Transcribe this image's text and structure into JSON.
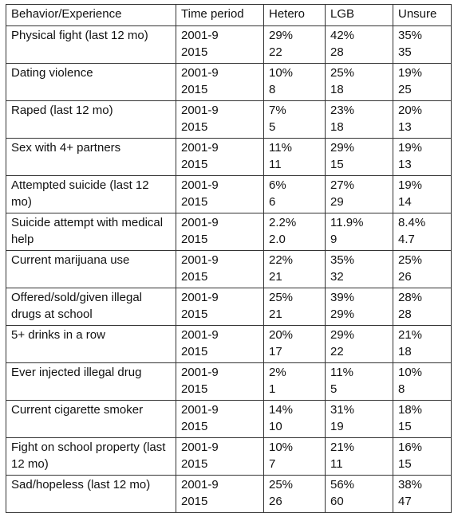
{
  "table": {
    "header": [
      "Behavior/Experience",
      "Time period",
      "Hetero",
      "LGB",
      "Unsure"
    ],
    "rows": [
      {
        "behavior": "Physical fight (last 12 mo)",
        "values": [
          [
            "2001-9",
            "29%",
            "42%",
            "35%"
          ],
          [
            "2015",
            "22",
            "28",
            "35"
          ]
        ]
      },
      {
        "behavior": "Dating violence",
        "values": [
          [
            "2001-9",
            "10%",
            "25%",
            "19%"
          ],
          [
            "2015",
            "8",
            "18",
            "25"
          ]
        ]
      },
      {
        "behavior": "Raped (last 12 mo)",
        "values": [
          [
            "2001-9",
            "7%",
            "23%",
            "20%"
          ],
          [
            "2015",
            "5",
            "18",
            "13"
          ]
        ]
      },
      {
        "behavior": "Sex with 4+ partners",
        "values": [
          [
            "2001-9",
            "11%",
            "29%",
            "19%"
          ],
          [
            "2015",
            "11",
            "15",
            "13"
          ]
        ]
      },
      {
        "behavior": "Attempted suicide (last 12 mo)",
        "values": [
          [
            "2001-9",
            "6%",
            "27%",
            "19%"
          ],
          [
            "2015",
            "6",
            "29",
            "14"
          ]
        ]
      },
      {
        "behavior": "Suicide attempt with medical help",
        "values": [
          [
            "2001-9",
            "2.2%",
            "11.9%",
            "8.4%"
          ],
          [
            "2015",
            "2.0",
            "9",
            "4.7"
          ]
        ]
      },
      {
        "behavior": "Current marijuana use",
        "values": [
          [
            "2001-9",
            "22%",
            "35%",
            "25%"
          ],
          [
            "2015",
            "21",
            "32",
            "26"
          ]
        ]
      },
      {
        "behavior": "Offered/sold/given illegal drugs at school",
        "values": [
          [
            "2001-9",
            "25%",
            "39%",
            "28%"
          ],
          [
            "2015",
            "21",
            "29%",
            "28"
          ]
        ]
      },
      {
        "behavior": "5+ drinks in a row",
        "values": [
          [
            "2001-9",
            "20%",
            "29%",
            "21%"
          ],
          [
            "2015",
            "17",
            "22",
            "18"
          ]
        ]
      },
      {
        "behavior": "Ever injected illegal drug",
        "values": [
          [
            "2001-9",
            "2%",
            "11%",
            "10%"
          ],
          [
            "2015",
            "1",
            "5",
            "8"
          ]
        ]
      },
      {
        "behavior": "Current cigarette smoker",
        "values": [
          [
            "2001-9",
            "14%",
            "31%",
            "18%"
          ],
          [
            "2015",
            "10",
            "19",
            "15"
          ]
        ]
      },
      {
        "behavior": "Fight on school property (last 12 mo)",
        "values": [
          [
            "2001-9",
            "10%",
            "21%",
            "16%"
          ],
          [
            "2015",
            "7",
            "11",
            "15"
          ]
        ]
      },
      {
        "behavior": "Sad/hopeless (last 12 mo)",
        "values": [
          [
            "2001-9",
            "25%",
            "56%",
            "38%"
          ],
          [
            "2015",
            "26",
            "60",
            "47"
          ]
        ]
      }
    ]
  }
}
